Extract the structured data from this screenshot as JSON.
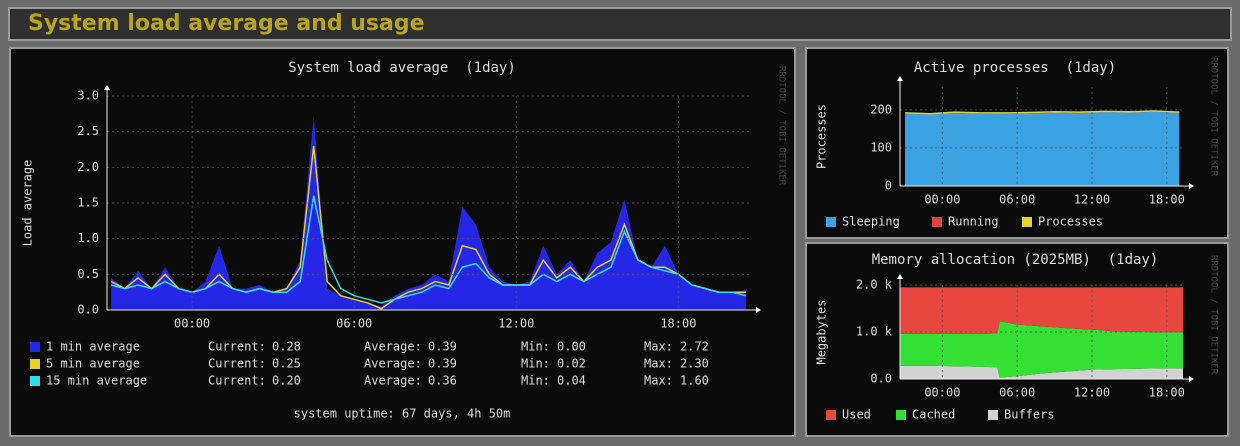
{
  "header": {
    "title": "System load average and usage"
  },
  "chart_data": [
    {
      "type": "area",
      "title": "System load average  (1day)",
      "y_label": "Load average",
      "side_label": "RRDTOOL / TOBI OETIKER",
      "footer": "system uptime: 67 days, 4h 50m",
      "x": [
        -3,
        -2.5,
        -2,
        -1.5,
        -1,
        -0.5,
        0,
        0.5,
        1,
        1.5,
        2,
        2.5,
        3,
        3.5,
        4,
        4.5,
        5,
        5.5,
        6,
        6.5,
        7,
        7.5,
        8,
        8.5,
        9,
        9.5,
        10,
        10.5,
        11,
        11.5,
        12,
        12.5,
        13,
        13.5,
        14,
        14.5,
        15,
        15.5,
        16,
        16.5,
        17,
        17.5,
        18,
        18.5,
        19,
        19.5,
        20,
        20.5
      ],
      "xlim": [
        -3.15,
        20.65
      ],
      "xticks": [
        {
          "value": 0,
          "label": "00:00"
        },
        {
          "value": 6,
          "label": "06:00"
        },
        {
          "value": 12,
          "label": "12:00"
        },
        {
          "value": 18,
          "label": "18:00"
        }
      ],
      "ylim": [
        0,
        3
      ],
      "yticks": [
        {
          "value": 0,
          "label": "0.0"
        },
        0.5,
        {
          "value": 1,
          "label": "1.0"
        },
        1.5,
        {
          "value": 2,
          "label": "2.0"
        },
        2.5,
        {
          "value": 3,
          "label": "3.0"
        }
      ],
      "grid": true,
      "stat_labels": [
        "Current:",
        "Average:",
        "Min:",
        "Max:"
      ],
      "series": [
        {
          "name": "1 min average",
          "color": "#2626e6",
          "style": "area",
          "current": "0.28",
          "average": "0.39",
          "min": "0.00",
          "max": "2.72",
          "values": [
            0.45,
            0.3,
            0.55,
            0.3,
            0.6,
            0.3,
            0.25,
            0.4,
            0.9,
            0.3,
            0.3,
            0.35,
            0.25,
            0.3,
            0.7,
            2.72,
            0.3,
            0.2,
            0.15,
            0.1,
            0.05,
            0.2,
            0.3,
            0.35,
            0.5,
            0.4,
            1.45,
            1.2,
            0.6,
            0.4,
            0.35,
            0.4,
            0.9,
            0.5,
            0.7,
            0.4,
            0.8,
            0.95,
            1.55,
            0.7,
            0.6,
            0.9,
            0.5,
            0.35,
            0.3,
            0.25,
            0.25,
            0.28
          ]
        },
        {
          "name": "5 min average",
          "color": "#e6d230",
          "style": "line",
          "current": "0.25",
          "average": "0.39",
          "min": "0.02",
          "max": "2.30",
          "values": [
            0.4,
            0.3,
            0.45,
            0.3,
            0.5,
            0.3,
            0.25,
            0.3,
            0.5,
            0.3,
            0.25,
            0.3,
            0.25,
            0.3,
            0.6,
            2.3,
            0.4,
            0.2,
            0.15,
            0.1,
            0.02,
            0.15,
            0.25,
            0.3,
            0.4,
            0.35,
            0.9,
            0.85,
            0.5,
            0.35,
            0.35,
            0.35,
            0.7,
            0.45,
            0.6,
            0.4,
            0.6,
            0.7,
            1.2,
            0.7,
            0.6,
            0.6,
            0.5,
            0.35,
            0.3,
            0.25,
            0.25,
            0.25
          ]
        },
        {
          "name": "15 min average",
          "color": "#2ee0e6",
          "style": "line",
          "current": "0.20",
          "average": "0.36",
          "min": "0.04",
          "max": "1.60",
          "values": [
            0.35,
            0.3,
            0.35,
            0.3,
            0.4,
            0.3,
            0.25,
            0.3,
            0.4,
            0.3,
            0.25,
            0.3,
            0.25,
            0.25,
            0.4,
            1.6,
            0.7,
            0.3,
            0.2,
            0.15,
            0.1,
            0.15,
            0.2,
            0.25,
            0.35,
            0.3,
            0.6,
            0.65,
            0.45,
            0.35,
            0.35,
            0.35,
            0.5,
            0.4,
            0.5,
            0.4,
            0.5,
            0.6,
            1.1,
            0.7,
            0.6,
            0.55,
            0.5,
            0.35,
            0.3,
            0.25,
            0.25,
            0.2
          ]
        }
      ]
    },
    {
      "type": "area",
      "title": "Active processes  (1day)",
      "y_label": "Processes",
      "side_label": "RRDTOOL / TOBI OETIKER",
      "stack_from": "first",
      "x": [
        -3,
        -1,
        1,
        3,
        5,
        7,
        9,
        11,
        13,
        15,
        17,
        19
      ],
      "xlim": [
        -3.4,
        19.3
      ],
      "xticks": [
        {
          "value": 0,
          "label": "00:00"
        },
        {
          "value": 6,
          "label": "06:00"
        },
        {
          "value": 12,
          "label": "12:00"
        },
        {
          "value": 18,
          "label": "18:00"
        }
      ],
      "ylim": [
        0,
        260
      ],
      "yticks": [
        0,
        100,
        200
      ],
      "grid": true,
      "series": [
        {
          "name": "Sleeping",
          "color": "#3aa2e0",
          "style": "area",
          "stack": true,
          "values": [
            190,
            188,
            192,
            190,
            189,
            191,
            193,
            192,
            194,
            193,
            195,
            192
          ]
        },
        {
          "name": "Running",
          "color": "#e04040",
          "style": "area",
          "stack": true,
          "values": [
            1,
            1,
            1,
            1,
            2,
            1,
            1,
            1,
            1,
            1,
            1,
            1
          ]
        },
        {
          "name": "Processes",
          "color": "#e6d230",
          "style": "line",
          "values": [
            192,
            190,
            194,
            192,
            192,
            193,
            195,
            194,
            196,
            195,
            197,
            194
          ]
        }
      ]
    },
    {
      "type": "area",
      "title": "Memory allocation (2025MB)  (1day)",
      "y_label": "Megabytes",
      "side_label": "RRDTOOL / TOBI OETIKER",
      "stack_from": "last",
      "x": [
        -3.4,
        -1,
        1,
        3,
        4.4,
        4.6,
        6,
        8,
        10,
        12,
        14,
        16,
        18,
        19.3
      ],
      "xlim": [
        -3.4,
        19.3
      ],
      "xticks": [
        {
          "value": 0,
          "label": "00:00"
        },
        {
          "value": 6,
          "label": "06:00"
        },
        {
          "value": 12,
          "label": "12:00"
        },
        {
          "value": 18,
          "label": "18:00"
        }
      ],
      "ylim": [
        0,
        2000
      ],
      "yticks": [
        {
          "value": 0,
          "label": "0.0"
        },
        {
          "value": 1000,
          "label": "1.0 k"
        },
        {
          "value": 2000,
          "label": "2.0 k"
        }
      ],
      "grid": true,
      "series": [
        {
          "name": "Used",
          "color": "#e8473f",
          "style": "area",
          "stack": true,
          "values": [
            990,
            990,
            990,
            990,
            980,
            720,
            790,
            830,
            870,
            900,
            940,
            950,
            960,
            960
          ]
        },
        {
          "name": "Cached",
          "color": "#33e033",
          "style": "area",
          "stack": true,
          "values": [
            680,
            680,
            690,
            700,
            720,
            1200,
            1100,
            1000,
            920,
            850,
            800,
            780,
            760,
            760
          ]
        },
        {
          "name": "Buffers",
          "color": "#d2d2d2",
          "style": "area",
          "stack": true,
          "values": [
            280,
            280,
            270,
            260,
            250,
            30,
            60,
            120,
            160,
            200,
            210,
            220,
            230,
            230
          ]
        }
      ]
    }
  ]
}
